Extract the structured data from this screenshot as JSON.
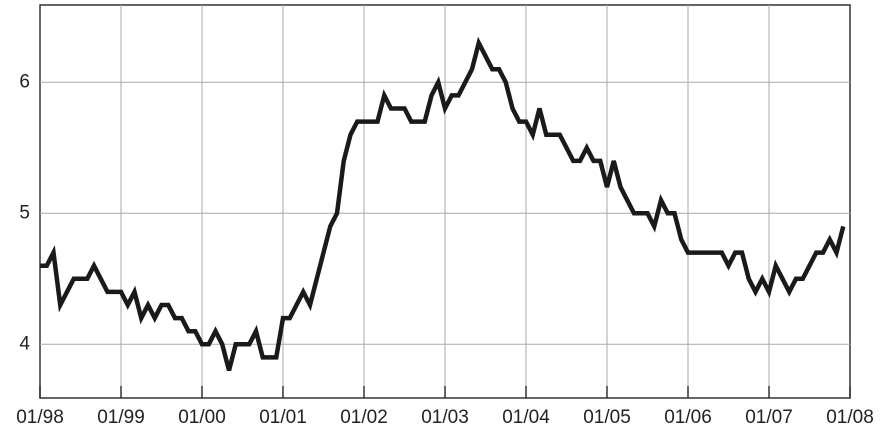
{
  "chart_data": {
    "type": "line",
    "categories": [
      "01/98",
      null,
      null,
      null,
      null,
      null,
      null,
      null,
      null,
      null,
      null,
      null,
      "01/99",
      null,
      null,
      null,
      null,
      null,
      null,
      null,
      null,
      null,
      null,
      null,
      "01/00",
      null,
      null,
      null,
      null,
      null,
      null,
      null,
      null,
      null,
      null,
      null,
      "01/01",
      null,
      null,
      null,
      null,
      null,
      null,
      null,
      null,
      null,
      null,
      null,
      "01/02",
      null,
      null,
      null,
      null,
      null,
      null,
      null,
      null,
      null,
      null,
      null,
      "01/03",
      null,
      null,
      null,
      null,
      null,
      null,
      null,
      null,
      null,
      null,
      null,
      "01/04",
      null,
      null,
      null,
      null,
      null,
      null,
      null,
      null,
      null,
      null,
      null,
      "01/05",
      null,
      null,
      null,
      null,
      null,
      null,
      null,
      null,
      null,
      null,
      null,
      "01/06",
      null,
      null,
      null,
      null,
      null,
      null,
      null,
      null,
      null,
      null,
      null,
      "01/07",
      null,
      null,
      null,
      null,
      null,
      null,
      null,
      null,
      null,
      null,
      null,
      "01/08"
    ],
    "values": [
      4.6,
      4.6,
      4.7,
      4.3,
      4.4,
      4.5,
      4.5,
      4.5,
      4.6,
      4.5,
      4.4,
      4.4,
      4.4,
      4.3,
      4.4,
      4.2,
      4.3,
      4.2,
      4.3,
      4.3,
      4.2,
      4.2,
      4.1,
      4.1,
      4.0,
      4.0,
      4.1,
      4.0,
      3.8,
      4.0,
      4.0,
      4.0,
      4.1,
      3.9,
      3.9,
      3.9,
      4.2,
      4.2,
      4.3,
      4.4,
      4.3,
      4.5,
      4.7,
      4.9,
      5.0,
      5.4,
      5.6,
      5.7,
      5.7,
      5.7,
      5.7,
      5.9,
      5.8,
      5.8,
      5.8,
      5.7,
      5.7,
      5.7,
      5.9,
      6.0,
      5.8,
      5.9,
      5.9,
      6.0,
      6.1,
      6.3,
      6.2,
      6.1,
      6.1,
      6.0,
      5.8,
      5.7,
      5.7,
      5.6,
      5.8,
      5.6,
      5.6,
      5.6,
      5.5,
      5.4,
      5.4,
      5.5,
      5.4,
      5.4,
      5.2,
      5.4,
      5.2,
      5.1,
      5.0,
      5.0,
      5.0,
      4.9,
      5.1,
      5.0,
      5.0,
      4.8,
      4.7,
      4.7,
      4.7,
      4.7,
      4.7,
      4.7,
      4.6,
      4.7,
      4.7,
      4.5,
      4.4,
      4.5,
      4.4,
      4.6,
      4.5,
      4.4,
      4.5,
      4.5,
      4.6,
      4.7,
      4.7,
      4.8,
      4.7,
      4.9,
      null
    ],
    "color": "#1a1a1a",
    "ylim": [
      3.59,
      6.59
    ],
    "yticks": [
      4,
      5,
      6
    ],
    "grid": true
  }
}
